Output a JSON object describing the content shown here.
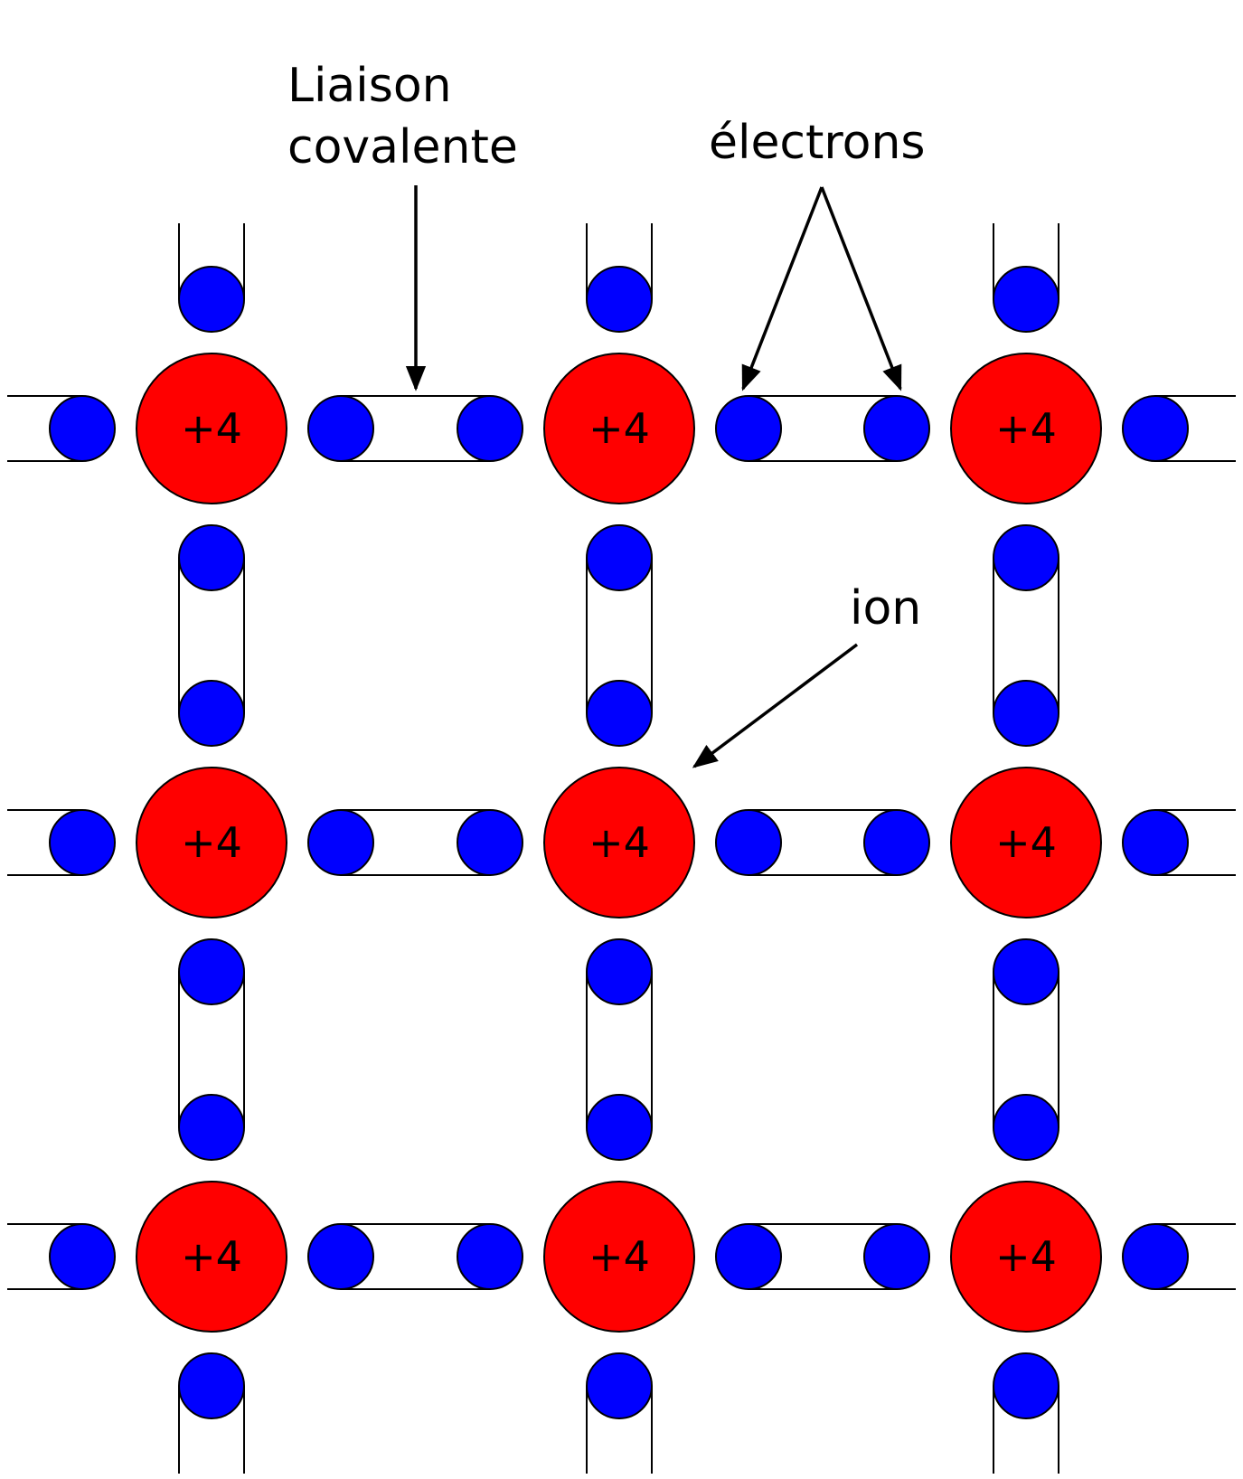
{
  "labels": {
    "covalent_bond_line1": "Liaison",
    "covalent_bond_line2": "covalente",
    "electrons": "électrons",
    "ion": "ion"
  },
  "ion_charge": "+4",
  "lattice": {
    "rows": 3,
    "cols": 3
  },
  "colors": {
    "ion": "#ff0000",
    "electron": "#0000ff",
    "outline": "#000000",
    "background": "#ffffff"
  }
}
